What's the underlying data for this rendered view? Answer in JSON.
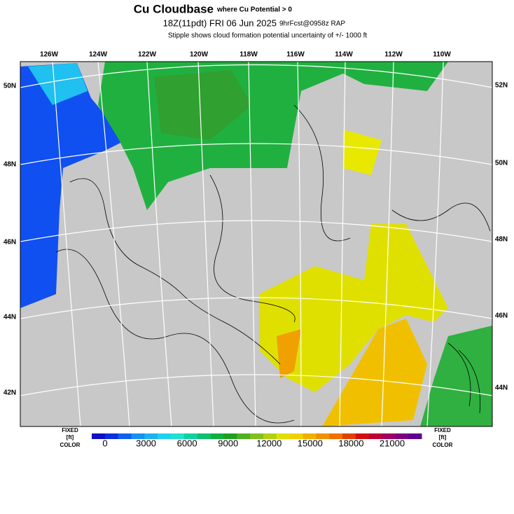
{
  "header": {
    "title": "Cu Cloudbase",
    "title_note": "where Cu Potential > 0",
    "valid_time": "18Z(11pdt) FRI 06 Jun 2025",
    "forecast": "9hrFcst@0958z RAP",
    "subtitle": "Stipple shows cloud formation potential uncertainty of +/- 1000 ft"
  },
  "map": {
    "longitude_labels": [
      "126W",
      "124W",
      "122W",
      "120W",
      "118W",
      "116W",
      "114W",
      "112W",
      "110W"
    ],
    "left_latitude_labels": [
      "50N",
      "48N",
      "46N",
      "44N",
      "42N"
    ],
    "right_latitude_labels": [
      "52N",
      "50N",
      "48N",
      "46N",
      "44N"
    ]
  },
  "colorbar": {
    "ticks": [
      0,
      3000,
      6000,
      9000,
      12000,
      15000,
      18000,
      21000
    ],
    "colors": [
      "#1010c0",
      "#0a30e0",
      "#1060f0",
      "#1890f0",
      "#20b0f0",
      "#20d0f0",
      "#20e0d0",
      "#10d0a0",
      "#10c070",
      "#10b040",
      "#20a020",
      "#50b020",
      "#80c020",
      "#b0d010",
      "#e0e000",
      "#f0d000",
      "#f0b000",
      "#f09000",
      "#f07000",
      "#e04000",
      "#d01010",
      "#c00030",
      "#a00060",
      "#800080",
      "#600090"
    ],
    "left_labels": [
      "FIXED",
      "[ft]",
      "COLOR"
    ],
    "right_labels": [
      "FIXED",
      "[ft]",
      "COLOR"
    ]
  }
}
